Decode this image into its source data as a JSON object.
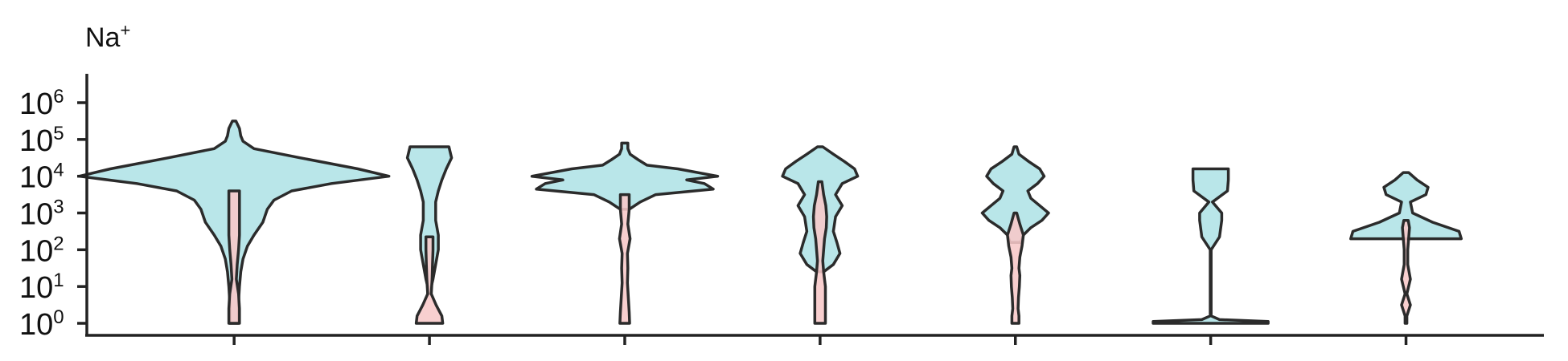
{
  "chart_data": {
    "type": "violin",
    "title": "Na",
    "title_superscript": "+",
    "y_scale": "log10",
    "ylim_exponent": [
      0,
      6
    ],
    "y_ticks": [
      {
        "base": "10",
        "exp": "0"
      },
      {
        "base": "10",
        "exp": "1"
      },
      {
        "base": "10",
        "exp": "2"
      },
      {
        "base": "10",
        "exp": "3"
      },
      {
        "base": "10",
        "exp": "4"
      },
      {
        "base": "10",
        "exp": "5"
      },
      {
        "base": "10",
        "exp": "6"
      }
    ],
    "x_categories": 7,
    "colors": {
      "outer": "#b9e6e9",
      "inner": "#f7c8c8",
      "stroke": "#2b2b2b"
    },
    "groups": [
      {
        "outer": [
          [
            5.5,
            0.04
          ],
          [
            5.3,
            0.12
          ],
          [
            5.1,
            0.15
          ],
          [
            4.95,
            0.2
          ],
          [
            4.75,
            0.45
          ],
          [
            4.5,
            1.5
          ],
          [
            4.2,
            2.8
          ],
          [
            4.0,
            3.5
          ],
          [
            3.8,
            2.2
          ],
          [
            3.6,
            1.3
          ],
          [
            3.35,
            0.9
          ],
          [
            3.1,
            0.75
          ],
          [
            2.75,
            0.65
          ],
          [
            2.4,
            0.45
          ],
          [
            2.1,
            0.3
          ],
          [
            1.75,
            0.2
          ],
          [
            1.4,
            0.15
          ],
          [
            1.0,
            0.12
          ],
          [
            0.6,
            0.1
          ],
          [
            0.2,
            0.1
          ],
          [
            0,
            0.1
          ]
        ],
        "inner": [
          [
            3.6,
            0.12
          ],
          [
            3.2,
            0.12
          ],
          [
            2.8,
            0.12
          ],
          [
            2.4,
            0.12
          ],
          [
            2.0,
            0.1
          ],
          [
            1.6,
            0.07
          ],
          [
            1.2,
            0.05
          ],
          [
            0.8,
            0.1
          ],
          [
            0.4,
            0.12
          ],
          [
            0,
            0.12
          ]
        ]
      },
      {
        "outer": [
          [
            4.8,
            0.44
          ],
          [
            4.5,
            0.5
          ],
          [
            4.2,
            0.38
          ],
          [
            3.9,
            0.28
          ],
          [
            3.6,
            0.2
          ],
          [
            3.3,
            0.14
          ],
          [
            2.8,
            0.14
          ],
          [
            2.4,
            0.2
          ],
          [
            2.0,
            0.2
          ],
          [
            1.6,
            0.14
          ],
          [
            1.2,
            0.08
          ],
          [
            1.0,
            0.04
          ],
          [
            0.8,
            0.04
          ]
        ],
        "inner": [
          [
            2.35,
            0.08
          ],
          [
            2.0,
            0.08
          ],
          [
            1.6,
            0.07
          ],
          [
            1.2,
            0.06
          ],
          [
            0.8,
            0.04
          ],
          [
            0.5,
            0.15
          ],
          [
            0.2,
            0.28
          ],
          [
            0,
            0.3
          ]
        ]
      },
      {
        "outer": [
          [
            4.9,
            0.07
          ],
          [
            4.75,
            0.07
          ],
          [
            4.6,
            0.12
          ],
          [
            4.45,
            0.3
          ],
          [
            4.3,
            0.5
          ],
          [
            4.2,
            1.2
          ],
          [
            4.0,
            2.1
          ],
          [
            3.9,
            1.4
          ],
          [
            3.8,
            1.8
          ],
          [
            3.65,
            2.0
          ],
          [
            3.5,
            0.7
          ],
          [
            3.3,
            0.35
          ],
          [
            3.1,
            0.1
          ]
        ],
        "inner": [
          [
            3.5,
            0.1
          ],
          [
            3.1,
            0.1
          ],
          [
            2.7,
            0.07
          ],
          [
            2.3,
            0.12
          ],
          [
            1.9,
            0.06
          ],
          [
            1.5,
            0.07
          ],
          [
            1.1,
            0.06
          ],
          [
            0.7,
            0.08
          ],
          [
            0.3,
            0.1
          ],
          [
            0,
            0.11
          ]
        ]
      },
      {
        "outer": [
          [
            4.8,
            0.06
          ],
          [
            4.6,
            0.3
          ],
          [
            4.4,
            0.55
          ],
          [
            4.2,
            0.78
          ],
          [
            4.0,
            0.85
          ],
          [
            3.8,
            0.5
          ],
          [
            3.5,
            0.35
          ],
          [
            3.2,
            0.5
          ],
          [
            2.9,
            0.35
          ],
          [
            2.5,
            0.3
          ],
          [
            2.2,
            0.38
          ],
          [
            1.9,
            0.45
          ],
          [
            1.6,
            0.3
          ],
          [
            1.4,
            0.08
          ]
        ],
        "inner": [
          [
            3.85,
            0.04
          ],
          [
            3.5,
            0.08
          ],
          [
            3.2,
            0.13
          ],
          [
            2.9,
            0.15
          ],
          [
            2.6,
            0.14
          ],
          [
            2.3,
            0.1
          ],
          [
            2.0,
            0.08
          ],
          [
            1.7,
            0.06
          ],
          [
            1.4,
            0.08
          ],
          [
            1.0,
            0.12
          ],
          [
            0.6,
            0.12
          ],
          [
            0.2,
            0.12
          ],
          [
            0,
            0.12
          ]
        ]
      },
      {
        "outer": [
          [
            4.8,
            0.03
          ],
          [
            4.6,
            0.08
          ],
          [
            4.4,
            0.3
          ],
          [
            4.2,
            0.55
          ],
          [
            4.0,
            0.65
          ],
          [
            3.8,
            0.5
          ],
          [
            3.6,
            0.28
          ],
          [
            3.4,
            0.35
          ],
          [
            3.2,
            0.55
          ],
          [
            3.0,
            0.75
          ],
          [
            2.8,
            0.6
          ],
          [
            2.6,
            0.35
          ],
          [
            2.4,
            0.18
          ],
          [
            2.2,
            0.12
          ]
        ],
        "inner": [
          [
            3.0,
            0.03
          ],
          [
            2.7,
            0.1
          ],
          [
            2.4,
            0.18
          ],
          [
            2.1,
            0.15
          ],
          [
            1.8,
            0.1
          ],
          [
            1.5,
            0.08
          ],
          [
            1.3,
            0.1
          ],
          [
            1.0,
            0.09
          ],
          [
            0.7,
            0.07
          ],
          [
            0.4,
            0.06
          ],
          [
            0.2,
            0.08
          ],
          [
            0,
            0.08
          ]
        ]
      },
      {
        "outer": [
          [
            4.2,
            0.4
          ],
          [
            3.9,
            0.4
          ],
          [
            3.6,
            0.38
          ],
          [
            3.3,
            0.04
          ],
          [
            3.0,
            0.25
          ],
          [
            2.8,
            0.25
          ],
          [
            2.35,
            0.2
          ],
          [
            2.0,
            0.01
          ],
          [
            1.5,
            0.01
          ],
          [
            1.0,
            0.01
          ],
          [
            0.5,
            0.01
          ],
          [
            0.2,
            0.01
          ],
          [
            0.1,
            0.2
          ],
          [
            0.05,
            1.3
          ],
          [
            0,
            1.3
          ]
        ],
        "inner": []
      },
      {
        "outer": [
          [
            4.1,
            0.06
          ],
          [
            3.9,
            0.25
          ],
          [
            3.7,
            0.5
          ],
          [
            3.5,
            0.45
          ],
          [
            3.3,
            0.1
          ],
          [
            3.0,
            0.15
          ],
          [
            2.75,
            0.6
          ],
          [
            2.5,
            1.2
          ],
          [
            2.3,
            1.25
          ]
        ],
        "inner": [
          [
            2.8,
            0.05
          ],
          [
            2.6,
            0.08
          ],
          [
            2.3,
            0.06
          ],
          [
            2.0,
            0.04
          ],
          [
            1.6,
            0.04
          ],
          [
            1.2,
            0.1
          ],
          [
            0.8,
            0.02
          ],
          [
            0.5,
            0.1
          ],
          [
            0.2,
            0.02
          ],
          [
            0,
            0.02
          ]
        ]
      }
    ]
  }
}
